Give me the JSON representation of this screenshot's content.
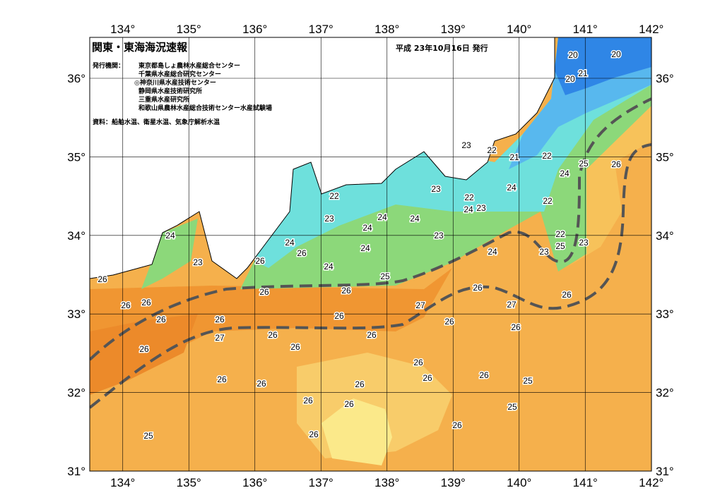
{
  "header": {
    "title": "関東・東海海況速報",
    "date": "平成 23年10月16日 発行"
  },
  "publisher": {
    "heading": "発行機関：",
    "organizations": [
      "東京都島しょ農林水産総合センター",
      "千葉県水産総合研究センター",
      "◎神奈川県水産技術センター",
      "静岡県水産技術研究所",
      "三重県水産研究所",
      "和歌山県農林水産総合技術センター水産試験場"
    ],
    "source": "資料：船舶水温、衛星水温、気象庁解析水温"
  },
  "axes": {
    "lon_labels": [
      "134°",
      "135°",
      "136°",
      "137°",
      "138°",
      "139°",
      "140°",
      "141°",
      "142°"
    ],
    "lat_labels": [
      "31°",
      "32°",
      "33°",
      "34°",
      "35°",
      "36°"
    ]
  },
  "contour_labels": [
    20,
    20,
    21,
    20,
    23,
    22,
    21,
    22,
    25,
    26,
    24,
    23,
    22,
    22,
    24,
    22,
    23,
    24,
    23,
    24,
    24,
    24,
    24,
    23,
    22,
    24,
    24,
    25,
    23,
    26,
    24,
    23,
    26,
    23,
    24,
    25,
    26,
    26,
    26,
    26,
    26,
    26,
    26,
    27,
    27,
    26,
    26,
    26,
    26,
    26,
    26,
    27,
    26,
    26,
    26,
    26,
    26,
    26,
    26,
    26,
    26,
    25,
    26,
    26,
    25,
    26,
    26,
    25
  ]
}
